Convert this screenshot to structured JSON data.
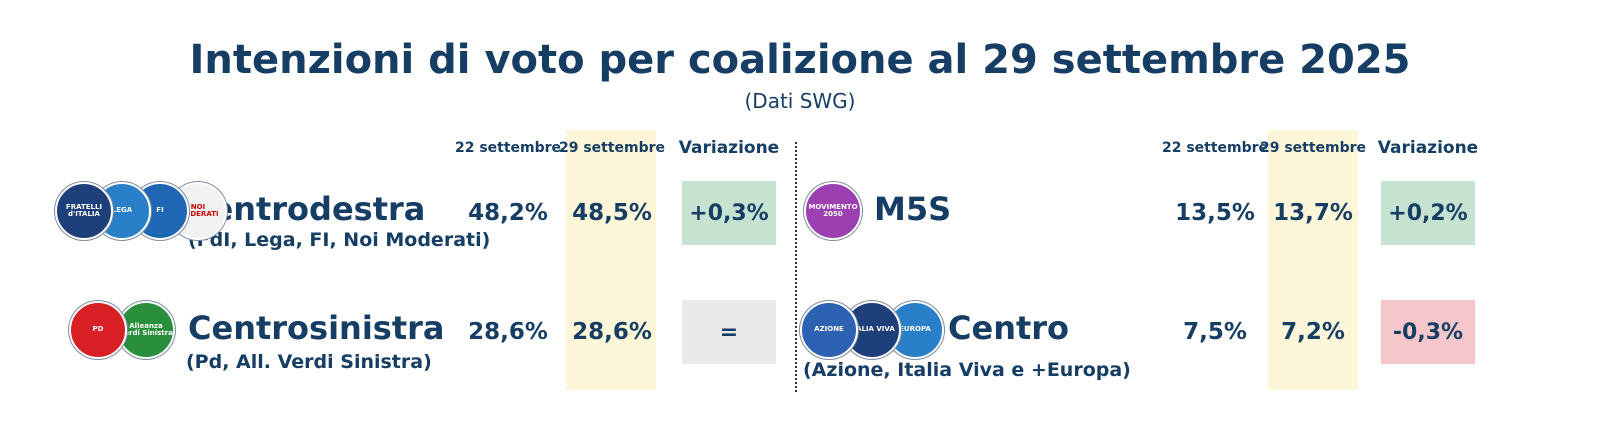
{
  "title": "Intenzioni di voto per coalizione al 29 settembre 2025",
  "subtitle": "(Dati SWG)",
  "panels": [
    {
      "headers": [
        "22 settembre",
        "29 settembre",
        "Variazione"
      ],
      "rows": [
        {
          "name": "Centrodestra",
          "parties": "(FdI, Lega, FI, Noi Moderati)",
          "previous": "48,2%",
          "current": "48,5%",
          "change": "+0,3%",
          "logos": [
            "FRATELLI d'ITALIA",
            "LEGA",
            "FI",
            "NOI MODERATI"
          ]
        },
        {
          "name": "Centrosinistra",
          "parties": "(Pd, All. Verdi Sinistra)",
          "previous": "28,6%",
          "current": "28,6%",
          "change": "=",
          "logos": [
            "PD",
            "Alleanza Verdi Sinistra"
          ]
        }
      ]
    },
    {
      "headers": [
        "22 settembre",
        "29 settembre",
        "Variazione"
      ],
      "rows": [
        {
          "name": "M5S",
          "previous": "13,5%",
          "current": "13,7%",
          "change": "+0,2%",
          "logos": [
            "MOVIMENTO 2050"
          ]
        },
        {
          "name": "Centro",
          "parties": "(Azione, Italia Viva e +Europa)",
          "previous": "7,5%",
          "current": "7,2%",
          "change": "-0,3%",
          "logos": [
            "AZIONE",
            "ITALIA VIVA",
            "EUROPA"
          ]
        }
      ]
    }
  ]
}
